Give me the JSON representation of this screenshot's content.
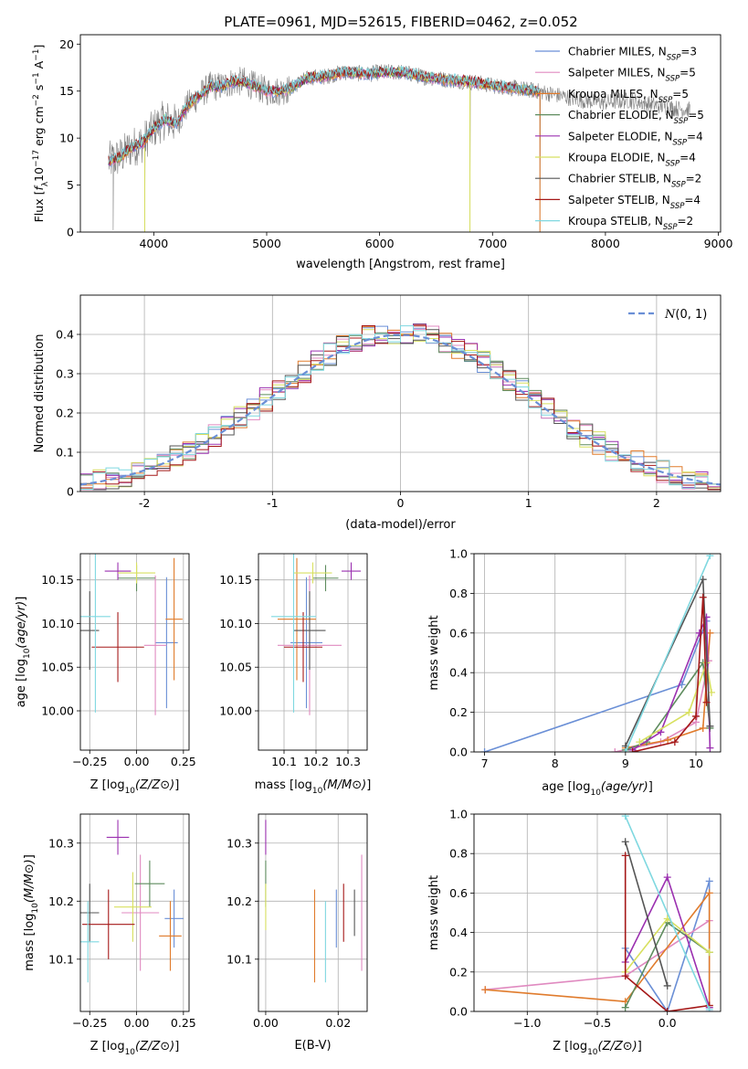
{
  "figure": {
    "title": "PLATE=0961, MJD=52615, FIBERID=0462, z=0.052"
  },
  "colors": {
    "chabrier_miles": "#6a8fd6",
    "salpeter_miles": "#e08ac0",
    "kroupa_miles": "#e07b2c",
    "chabrier_elodie": "#5e8c5e",
    "salpeter_elodie": "#9b30b0",
    "kroupa_elodie": "#d8e060",
    "chabrier_stelib": "#555555",
    "salpeter_stelib": "#a51818",
    "kroupa_stelib": "#7fd8e0",
    "observed": "#808080",
    "gaussian": "#6a8fd6",
    "grid": "#b0b0b0"
  },
  "chart_data": [
    {
      "id": "spectrum",
      "type": "line",
      "xlabel": "wavelength [Angstrom, rest frame]",
      "ylabel": "Flux [f_λ10^-17 erg cm^-2 s^-1 A^-1]",
      "xlim": [
        3350,
        9020
      ],
      "ylim": [
        0,
        21
      ],
      "xticks": [
        4000,
        5000,
        6000,
        7000,
        8000,
        9000
      ],
      "yticks": [
        0,
        5,
        10,
        15,
        20
      ],
      "grid": false,
      "legend_placement": "right",
      "legend": [
        {
          "label": "Chabrier MILES, N",
          "sub": "SSP",
          "tail": "=3",
          "color_key": "chabrier_miles"
        },
        {
          "label": "Salpeter MILES, N",
          "sub": "SSP",
          "tail": "=5",
          "color_key": "salpeter_miles"
        },
        {
          "label": "Kroupa MILES, N",
          "sub": "SSP",
          "tail": "=5",
          "color_key": "kroupa_miles"
        },
        {
          "label": "Chabrier ELODIE, N",
          "sub": "SSP",
          "tail": "=5",
          "color_key": "chabrier_elodie"
        },
        {
          "label": "Salpeter ELODIE, N",
          "sub": "SSP",
          "tail": "=4",
          "color_key": "salpeter_elodie"
        },
        {
          "label": "Kroupa ELODIE, N",
          "sub": "SSP",
          "tail": "=4",
          "color_key": "kroupa_elodie"
        },
        {
          "label": "Chabrier STELIB, N",
          "sub": "SSP",
          "tail": "=2",
          "color_key": "chabrier_stelib"
        },
        {
          "label": "Salpeter STELIB, N",
          "sub": "SSP",
          "tail": "=4",
          "color_key": "salpeter_stelib"
        },
        {
          "label": "Kroupa STELIB, N",
          "sub": "SSP",
          "tail": "=2",
          "color_key": "kroupa_stelib"
        }
      ],
      "continuum": [
        [
          3600,
          7.5
        ],
        [
          3700,
          8.0
        ],
        [
          3800,
          9.0
        ],
        [
          3900,
          9.5
        ],
        [
          4000,
          11.0
        ],
        [
          4100,
          12.0
        ],
        [
          4200,
          11.5
        ],
        [
          4300,
          13.5
        ],
        [
          4400,
          14.5
        ],
        [
          4500,
          15.5
        ],
        [
          4600,
          15.5
        ],
        [
          4700,
          16.0
        ],
        [
          4800,
          16.0
        ],
        [
          4900,
          15.5
        ],
        [
          5000,
          15.0
        ],
        [
          5100,
          15.0
        ],
        [
          5200,
          15.2
        ],
        [
          5300,
          16.0
        ],
        [
          5400,
          16.5
        ],
        [
          5500,
          16.5
        ],
        [
          5600,
          16.8
        ],
        [
          5700,
          17.0
        ],
        [
          5800,
          16.9
        ],
        [
          5900,
          16.8
        ],
        [
          6000,
          17.0
        ],
        [
          6200,
          17.0
        ],
        [
          6400,
          16.5
        ],
        [
          6600,
          16.2
        ],
        [
          6800,
          16.0
        ],
        [
          7000,
          15.6
        ],
        [
          7200,
          15.3
        ],
        [
          7400,
          15.0
        ],
        [
          7600,
          14.5
        ],
        [
          7800,
          14.0
        ],
        [
          8000,
          13.8
        ],
        [
          8200,
          14.0
        ],
        [
          8400,
          13.6
        ],
        [
          8600,
          13.2
        ],
        [
          8750,
          13.0
        ]
      ],
      "deep_dips": [
        {
          "x": 3640,
          "y": 0.2
        },
        {
          "x": 3920,
          "y": 0
        },
        {
          "x": 6800,
          "y": 0
        },
        {
          "x": 7420,
          "y": 0
        }
      ]
    },
    {
      "id": "residuals",
      "type": "histogram",
      "xlabel": "(data-model)/error",
      "ylabel": "Normed distribution",
      "xlim": [
        -2.5,
        2.5
      ],
      "ylim": [
        0,
        0.5
      ],
      "xticks": [
        -2,
        -1,
        0,
        1,
        2
      ],
      "yticks": [
        0.0,
        0.1,
        0.2,
        0.3,
        0.4
      ],
      "grid": true,
      "legend_placement": "top-right",
      "legend_label": "N(0,1)",
      "bin_width": 0.1
    },
    {
      "id": "age_vs_z",
      "type": "errorbar",
      "xlabel": "Z [log10(Z/Z⊙)]",
      "ylabel": "age  [log10(age/yr)]",
      "xlim": [
        -0.3,
        0.28
      ],
      "ylim": [
        9.955,
        10.18
      ],
      "xticks": [
        -0.25,
        0.0,
        0.25
      ],
      "xtick_labels": [
        "−0.25",
        "0.00",
        "0.25"
      ],
      "yticks": [
        10.0,
        10.05,
        10.1,
        10.15
      ],
      "ytick_labels": [
        "10.00",
        "10.05",
        "10.10",
        "10.15"
      ],
      "grid": true,
      "points": [
        {
          "color_key": "chabrier_miles",
          "x": 0.16,
          "y": 10.078,
          "xerr": 0.06,
          "yerr": 0.075
        },
        {
          "color_key": "salpeter_miles",
          "x": 0.1,
          "y": 10.075,
          "xerr": 0.06,
          "yerr": 0.08
        },
        {
          "color_key": "kroupa_miles",
          "x": 0.2,
          "y": 10.105,
          "xerr": 0.045,
          "yerr": 0.07
        },
        {
          "color_key": "chabrier_elodie",
          "x": 0.0,
          "y": 10.152,
          "xerr": 0.1,
          "yerr": 0.015
        },
        {
          "color_key": "salpeter_elodie",
          "x": -0.1,
          "y": 10.16,
          "xerr": 0.07,
          "yerr": 0.01
        },
        {
          "color_key": "kroupa_elodie",
          "x": 0.0,
          "y": 10.158,
          "xerr": 0.1,
          "yerr": 0.012
        },
        {
          "color_key": "chabrier_stelib",
          "x": -0.25,
          "y": 10.092,
          "xerr": 0.05,
          "yerr": 0.045
        },
        {
          "color_key": "salpeter_stelib",
          "x": -0.1,
          "y": 10.073,
          "xerr": 0.14,
          "yerr": 0.04
        },
        {
          "color_key": "kroupa_stelib",
          "x": -0.22,
          "y": 10.108,
          "xerr": 0.08,
          "yerr": 0.11
        }
      ]
    },
    {
      "id": "age_vs_mass",
      "type": "errorbar",
      "xlabel": "mass [log10(M/M⊙)]",
      "ylabel": "",
      "xlim": [
        10.02,
        10.36
      ],
      "ylim": [
        9.955,
        10.18
      ],
      "xticks": [
        10.1,
        10.2,
        10.3
      ],
      "xtick_labels": [
        "10.1",
        "10.2",
        "10.3"
      ],
      "yticks": [
        10.0,
        10.05,
        10.1,
        10.15
      ],
      "ytick_labels": [
        "10.00",
        "10.05",
        "10.10",
        "10.15"
      ],
      "grid": true,
      "points": [
        {
          "color_key": "chabrier_miles",
          "x": 10.17,
          "y": 10.078,
          "xerr": 0.05,
          "yerr": 0.075
        },
        {
          "color_key": "salpeter_miles",
          "x": 10.18,
          "y": 10.075,
          "xerr": 0.1,
          "yerr": 0.08
        },
        {
          "color_key": "kroupa_miles",
          "x": 10.14,
          "y": 10.105,
          "xerr": 0.06,
          "yerr": 0.07
        },
        {
          "color_key": "chabrier_elodie",
          "x": 10.23,
          "y": 10.152,
          "xerr": 0.04,
          "yerr": 0.015
        },
        {
          "color_key": "salpeter_elodie",
          "x": 10.31,
          "y": 10.16,
          "xerr": 0.03,
          "yerr": 0.01
        },
        {
          "color_key": "kroupa_elodie",
          "x": 10.19,
          "y": 10.158,
          "xerr": 0.06,
          "yerr": 0.012
        },
        {
          "color_key": "chabrier_stelib",
          "x": 10.18,
          "y": 10.092,
          "xerr": 0.05,
          "yerr": 0.045
        },
        {
          "color_key": "salpeter_stelib",
          "x": 10.16,
          "y": 10.073,
          "xerr": 0.06,
          "yerr": 0.04
        },
        {
          "color_key": "kroupa_stelib",
          "x": 10.13,
          "y": 10.108,
          "xerr": 0.07,
          "yerr": 0.11
        }
      ]
    },
    {
      "id": "weight_vs_age",
      "type": "line",
      "xlabel": "age  [log10(age/yr)]",
      "ylabel": "mass weight",
      "xlim": [
        6.85,
        10.35
      ],
      "ylim": [
        0,
        1
      ],
      "xticks": [
        7,
        8,
        9,
        10
      ],
      "yticks": [
        0.0,
        0.2,
        0.4,
        0.6,
        0.8,
        1.0
      ],
      "ytick_labels": [
        "0.0",
        "0.2",
        "0.4",
        "0.6",
        "0.8",
        "1.0"
      ],
      "grid": true,
      "series": [
        {
          "color_key": "chabrier_miles",
          "x": [
            7.0,
            9.8,
            10.15
          ],
          "y": [
            0.0,
            0.34,
            0.66
          ]
        },
        {
          "color_key": "salpeter_miles",
          "x": [
            8.85,
            9.5,
            10.0,
            10.18
          ],
          "y": [
            0.0,
            0.05,
            0.15,
            0.46
          ]
        },
        {
          "color_key": "kroupa_miles",
          "x": [
            9.0,
            9.6,
            10.1,
            10.2
          ],
          "y": [
            0.02,
            0.06,
            0.12,
            0.6
          ]
        },
        {
          "color_key": "chabrier_elodie",
          "x": [
            9.0,
            9.3,
            10.1,
            10.2
          ],
          "y": [
            0.01,
            0.05,
            0.45,
            0.12
          ]
        },
        {
          "color_key": "salpeter_elodie",
          "x": [
            9.1,
            9.5,
            10.05,
            10.15,
            10.2
          ],
          "y": [
            0.01,
            0.1,
            0.6,
            0.68,
            0.02
          ]
        },
        {
          "color_key": "kroupa_elodie",
          "x": [
            9.2,
            9.9,
            10.15,
            10.22
          ],
          "y": [
            0.05,
            0.2,
            0.45,
            0.3
          ]
        },
        {
          "color_key": "chabrier_stelib",
          "x": [
            9.0,
            10.1,
            10.2
          ],
          "y": [
            0.03,
            0.87,
            0.13
          ]
        },
        {
          "color_key": "salpeter_stelib",
          "x": [
            9.1,
            9.7,
            10.0,
            10.1,
            10.15
          ],
          "y": [
            0.0,
            0.05,
            0.18,
            0.78,
            0.25
          ]
        },
        {
          "color_key": "kroupa_stelib",
          "x": [
            9.0,
            10.2
          ],
          "y": [
            0.0,
            0.99
          ]
        }
      ]
    },
    {
      "id": "mass_vs_z",
      "type": "errorbar",
      "xlabel": "Z [log10(Z/Z⊙)]",
      "ylabel": "mass [log10(M/M⊙)]",
      "xlim": [
        -0.3,
        0.28
      ],
      "ylim": [
        10.01,
        10.35
      ],
      "xticks": [
        -0.25,
        0.0,
        0.25
      ],
      "xtick_labels": [
        "−0.25",
        "0.00",
        "0.25"
      ],
      "yticks": [
        10.1,
        10.2,
        10.3
      ],
      "ytick_labels": [
        "10.1",
        "10.2",
        "10.3"
      ],
      "grid": true,
      "points": [
        {
          "color_key": "chabrier_miles",
          "x": 0.2,
          "y": 10.17,
          "xerr": 0.05,
          "yerr": 0.05
        },
        {
          "color_key": "salpeter_miles",
          "x": 0.02,
          "y": 10.18,
          "xerr": 0.1,
          "yerr": 0.1
        },
        {
          "color_key": "kroupa_miles",
          "x": 0.18,
          "y": 10.14,
          "xerr": 0.06,
          "yerr": 0.06
        },
        {
          "color_key": "chabrier_elodie",
          "x": 0.07,
          "y": 10.23,
          "xerr": 0.08,
          "yerr": 0.04
        },
        {
          "color_key": "salpeter_elodie",
          "x": -0.1,
          "y": 10.31,
          "xerr": 0.06,
          "yerr": 0.03
        },
        {
          "color_key": "kroupa_elodie",
          "x": -0.02,
          "y": 10.19,
          "xerr": 0.1,
          "yerr": 0.06
        },
        {
          "color_key": "chabrier_stelib",
          "x": -0.25,
          "y": 10.18,
          "xerr": 0.05,
          "yerr": 0.05
        },
        {
          "color_key": "salpeter_stelib",
          "x": -0.15,
          "y": 10.16,
          "xerr": 0.14,
          "yerr": 0.06
        },
        {
          "color_key": "kroupa_stelib",
          "x": -0.26,
          "y": 10.13,
          "xerr": 0.06,
          "yerr": 0.07
        }
      ]
    },
    {
      "id": "mass_vs_ebv",
      "type": "errorbar",
      "xlabel": "E(B-V)",
      "ylabel": "",
      "xlim": [
        -0.002,
        0.028
      ],
      "ylim": [
        10.01,
        10.35
      ],
      "xticks": [
        0.0,
        0.02
      ],
      "xtick_labels": [
        "0.00",
        "0.02"
      ],
      "yticks": [
        10.1,
        10.2,
        10.3
      ],
      "ytick_labels": [
        "10.1",
        "10.2",
        "10.3"
      ],
      "grid": true,
      "points": [
        {
          "color_key": "chabrier_miles",
          "x": 0.0195,
          "y": 10.17,
          "xerr": 0,
          "yerr": 0.05
        },
        {
          "color_key": "salpeter_miles",
          "x": 0.0265,
          "y": 10.18,
          "xerr": 0,
          "yerr": 0.1
        },
        {
          "color_key": "kroupa_miles",
          "x": 0.0135,
          "y": 10.14,
          "xerr": 0,
          "yerr": 0.08
        },
        {
          "color_key": "chabrier_elodie",
          "x": 0.0,
          "y": 10.23,
          "xerr": 0,
          "yerr": 0.04
        },
        {
          "color_key": "salpeter_elodie",
          "x": 0.0,
          "y": 10.31,
          "xerr": 0,
          "yerr": 0.03
        },
        {
          "color_key": "kroupa_elodie",
          "x": 0.0,
          "y": 10.19,
          "xerr": 0,
          "yerr": 0.04
        },
        {
          "color_key": "chabrier_stelib",
          "x": 0.0245,
          "y": 10.18,
          "xerr": 0,
          "yerr": 0.04
        },
        {
          "color_key": "salpeter_stelib",
          "x": 0.0215,
          "y": 10.18,
          "xerr": 0,
          "yerr": 0.05
        },
        {
          "color_key": "kroupa_stelib",
          "x": 0.0165,
          "y": 10.13,
          "xerr": 0,
          "yerr": 0.07
        }
      ]
    },
    {
      "id": "weight_vs_z",
      "type": "line",
      "xlabel": "Z [log10(Z/Z⊙)]",
      "ylabel": "mass weight",
      "xlim": [
        -1.38,
        0.38
      ],
      "ylim": [
        0,
        1
      ],
      "xticks": [
        -1.0,
        -0.5,
        0.0
      ],
      "xtick_labels": [
        "−1.0",
        "−0.5",
        "0.0"
      ],
      "yticks": [
        0.0,
        0.2,
        0.4,
        0.6,
        0.8,
        1.0
      ],
      "ytick_labels": [
        "0.0",
        "0.2",
        "0.4",
        "0.6",
        "0.8",
        "1.0"
      ],
      "grid": true,
      "series": [
        {
          "color_key": "chabrier_miles",
          "x": [
            -0.3,
            0.0,
            0.3,
            0.3
          ],
          "y": [
            0.32,
            0.0,
            0.66,
            0.0
          ]
        },
        {
          "color_key": "salpeter_miles",
          "x": [
            -1.3,
            -0.3,
            0.3
          ],
          "y": [
            0.11,
            0.18,
            0.46
          ]
        },
        {
          "color_key": "kroupa_miles",
          "x": [
            -1.3,
            -0.3,
            0.3,
            0.3
          ],
          "y": [
            0.11,
            0.05,
            0.6,
            0.03
          ]
        },
        {
          "color_key": "chabrier_elodie",
          "x": [
            -0.3,
            0.0,
            0.3
          ],
          "y": [
            0.02,
            0.45,
            0.3
          ]
        },
        {
          "color_key": "salpeter_elodie",
          "x": [
            -0.3,
            0.0,
            0.3
          ],
          "y": [
            0.25,
            0.68,
            0.02
          ]
        },
        {
          "color_key": "kroupa_elodie",
          "x": [
            -0.3,
            0.0,
            0.3
          ],
          "y": [
            0.2,
            0.47,
            0.3
          ]
        },
        {
          "color_key": "chabrier_stelib",
          "x": [
            -0.3,
            0.0
          ],
          "y": [
            0.86,
            0.13
          ]
        },
        {
          "color_key": "salpeter_stelib",
          "x": [
            -0.3,
            -0.3,
            0.0,
            0.3
          ],
          "y": [
            0.79,
            0.18,
            0.0,
            0.03
          ]
        },
        {
          "color_key": "kroupa_stelib",
          "x": [
            -0.3,
            0.3
          ],
          "y": [
            0.99,
            0.01
          ]
        }
      ]
    }
  ]
}
